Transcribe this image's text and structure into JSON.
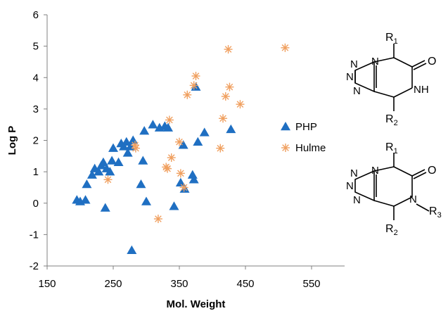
{
  "chart_data": {
    "type": "scatter",
    "xlabel": "Mol. Weight",
    "ylabel": "Log P",
    "xlim": [
      150,
      600
    ],
    "ylim": [
      -2,
      6
    ],
    "xticks": [
      150,
      250,
      350,
      450,
      550
    ],
    "yticks": [
      -2,
      -1,
      0,
      1,
      2,
      3,
      4,
      5,
      6
    ],
    "grid": false,
    "legend_position": "right",
    "series": [
      {
        "name": "PHP",
        "marker": "triangle",
        "color": "#1f6fc2",
        "points": [
          [
            195,
            0.1
          ],
          [
            200,
            0.05
          ],
          [
            208,
            0.1
          ],
          [
            210,
            0.6
          ],
          [
            218,
            0.9
          ],
          [
            222,
            1.1
          ],
          [
            228,
            1.0
          ],
          [
            232,
            1.2
          ],
          [
            235,
            1.3
          ],
          [
            238,
            -0.15
          ],
          [
            240,
            1.1
          ],
          [
            245,
            1.0
          ],
          [
            248,
            1.35
          ],
          [
            250,
            1.75
          ],
          [
            258,
            1.3
          ],
          [
            262,
            1.9
          ],
          [
            266,
            1.8
          ],
          [
            270,
            1.95
          ],
          [
            272,
            1.6
          ],
          [
            276,
            1.8
          ],
          [
            280,
            2.0
          ],
          [
            278,
            -1.5
          ],
          [
            292,
            0.6
          ],
          [
            295,
            1.35
          ],
          [
            297,
            2.3
          ],
          [
            300,
            0.05
          ],
          [
            310,
            2.5
          ],
          [
            320,
            2.4
          ],
          [
            328,
            2.45
          ],
          [
            333,
            2.4
          ],
          [
            342,
            -0.1
          ],
          [
            352,
            0.65
          ],
          [
            356,
            1.85
          ],
          [
            358,
            0.45
          ],
          [
            370,
            0.9
          ],
          [
            372,
            0.75
          ],
          [
            375,
            3.7
          ],
          [
            378,
            1.95
          ],
          [
            388,
            2.25
          ],
          [
            428,
            2.35
          ]
        ]
      },
      {
        "name": "Hulme",
        "marker": "asterisk",
        "color": "#f0a060",
        "points": [
          [
            242,
            0.75
          ],
          [
            283,
            1.85
          ],
          [
            284,
            1.75
          ],
          [
            318,
            -0.5
          ],
          [
            330,
            1.15
          ],
          [
            332,
            1.1
          ],
          [
            335,
            2.65
          ],
          [
            338,
            1.45
          ],
          [
            350,
            1.95
          ],
          [
            352,
            0.95
          ],
          [
            357,
            0.5
          ],
          [
            362,
            3.45
          ],
          [
            372,
            3.75
          ],
          [
            375,
            4.05
          ],
          [
            412,
            1.75
          ],
          [
            416,
            2.7
          ],
          [
            420,
            3.4
          ],
          [
            424,
            4.9
          ],
          [
            426,
            3.7
          ],
          [
            442,
            3.15
          ],
          [
            510,
            4.95
          ]
        ]
      }
    ],
    "annotations": {
      "structure_1_labels": [
        "R1",
        "N",
        "N",
        "N",
        "N",
        "O",
        "NH",
        "R2"
      ],
      "structure_2_labels": [
        "R1",
        "N",
        "N",
        "N",
        "N",
        "O",
        "N",
        "R3",
        "R2"
      ]
    }
  }
}
